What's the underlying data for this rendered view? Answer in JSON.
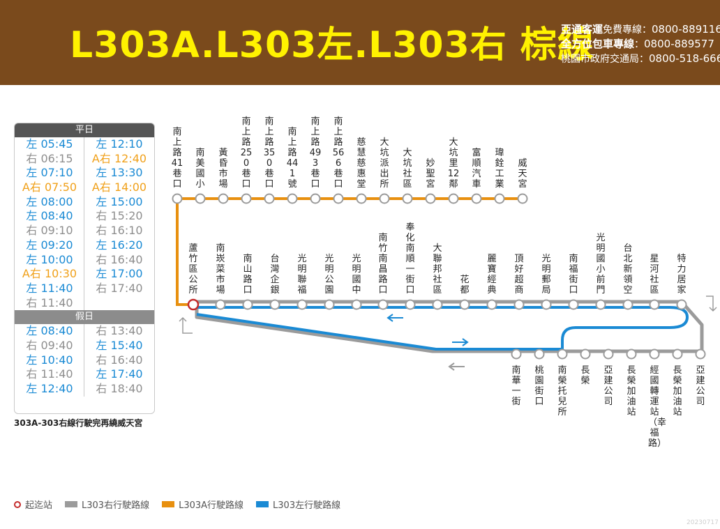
{
  "header": {
    "title": "L303A.L303左.L303右 棕線",
    "contacts": [
      {
        "name": "亞通客運",
        "note": "免費專線：",
        "phone": "0800-889116"
      },
      {
        "name": "全方位包車專線",
        "note": "：",
        "phone": "0800-889577"
      },
      {
        "name": "",
        "note": "桃園市政府交通局：",
        "phone": "0800-518-666"
      }
    ]
  },
  "timetable": {
    "weekday_label": "平日",
    "holiday_label": "假日",
    "weekday_col1": [
      {
        "text": "左 05:45",
        "kind": "left"
      },
      {
        "text": "右 06:15",
        "kind": "right"
      },
      {
        "text": "左 07:10",
        "kind": "left"
      },
      {
        "text": "A右 07:50",
        "kind": "a"
      },
      {
        "text": "左 08:00",
        "kind": "left"
      },
      {
        "text": "左 08:40",
        "kind": "left"
      },
      {
        "text": "右 09:10",
        "kind": "right"
      },
      {
        "text": "左 09:20",
        "kind": "left"
      },
      {
        "text": "左 10:00",
        "kind": "left"
      },
      {
        "text": "A右 10:30",
        "kind": "a"
      },
      {
        "text": "左 11:40",
        "kind": "left"
      },
      {
        "text": "右 11:40",
        "kind": "right"
      }
    ],
    "weekday_col2": [
      {
        "text": "左 12:10",
        "kind": "left"
      },
      {
        "text": "A右 12:40",
        "kind": "a"
      },
      {
        "text": "左 13:30",
        "kind": "left"
      },
      {
        "text": "A右 14:00",
        "kind": "a"
      },
      {
        "text": "左 15:00",
        "kind": "left"
      },
      {
        "text": "右 15:20",
        "kind": "right"
      },
      {
        "text": "右 16:10",
        "kind": "right"
      },
      {
        "text": "左 16:20",
        "kind": "left"
      },
      {
        "text": "右 16:40",
        "kind": "right"
      },
      {
        "text": "左 17:00",
        "kind": "left"
      },
      {
        "text": "右 17:40",
        "kind": "right"
      }
    ],
    "holiday_col1": [
      {
        "text": "左 08:40",
        "kind": "left"
      },
      {
        "text": "右 09:40",
        "kind": "right"
      },
      {
        "text": "左 10:40",
        "kind": "left"
      },
      {
        "text": "右 11:40",
        "kind": "right"
      },
      {
        "text": "左 12:40",
        "kind": "left"
      }
    ],
    "holiday_col2": [
      {
        "text": "右 13:40",
        "kind": "right"
      },
      {
        "text": "左 15:40",
        "kind": "left"
      },
      {
        "text": "右 16:40",
        "kind": "right"
      },
      {
        "text": "左 17:40",
        "kind": "left"
      },
      {
        "text": "右 18:40",
        "kind": "right"
      }
    ],
    "note": "303A-303右線行駛完再繞威天宮"
  },
  "route": {
    "top_stops": [
      "南上路41巷口",
      "南美國小",
      "黃昏市場",
      "南上路250巷口",
      "南上路350巷口",
      "南上路441號",
      "南上路493巷口",
      "南上路566巷口",
      "慈慧慈惠堂",
      "大坑派出所",
      "大坑社區",
      "妙聖宮",
      "大坑里12鄰",
      "富順汽車",
      "瑋銓工業",
      "威天宮"
    ],
    "middle_stops": [
      "蘆竹區公所",
      "南崁菜市場",
      "南山路口",
      "台灣企銀",
      "光明聯福",
      "光明公園",
      "光明國中",
      "南竹南昌路口",
      "奉化南順一街口",
      "大聯邦社區",
      "花都",
      "麗寶經典",
      "頂好超商",
      "光明郵局",
      "南福街口",
      "光明國小前門",
      "台北新領空",
      "星河社區",
      "特力居家"
    ],
    "bottom_stops": [
      "南華一街",
      "桃園街口",
      "南榮托兒所",
      "長榮",
      "亞建公司",
      "長榮加油站",
      "經國轉運站（幸福路）",
      "長榮加油站",
      "亞建公司"
    ],
    "colors": {
      "right": "#9b9b9b",
      "a": "#e8900f",
      "left": "#1a8ad4",
      "terminal": "#c42b2b"
    }
  },
  "legend": {
    "terminal": "起迄站",
    "right": "L303右行駛路線",
    "a": "L303A行駛路線",
    "left": "L303左行駛路線"
  },
  "date_code": "20230717"
}
